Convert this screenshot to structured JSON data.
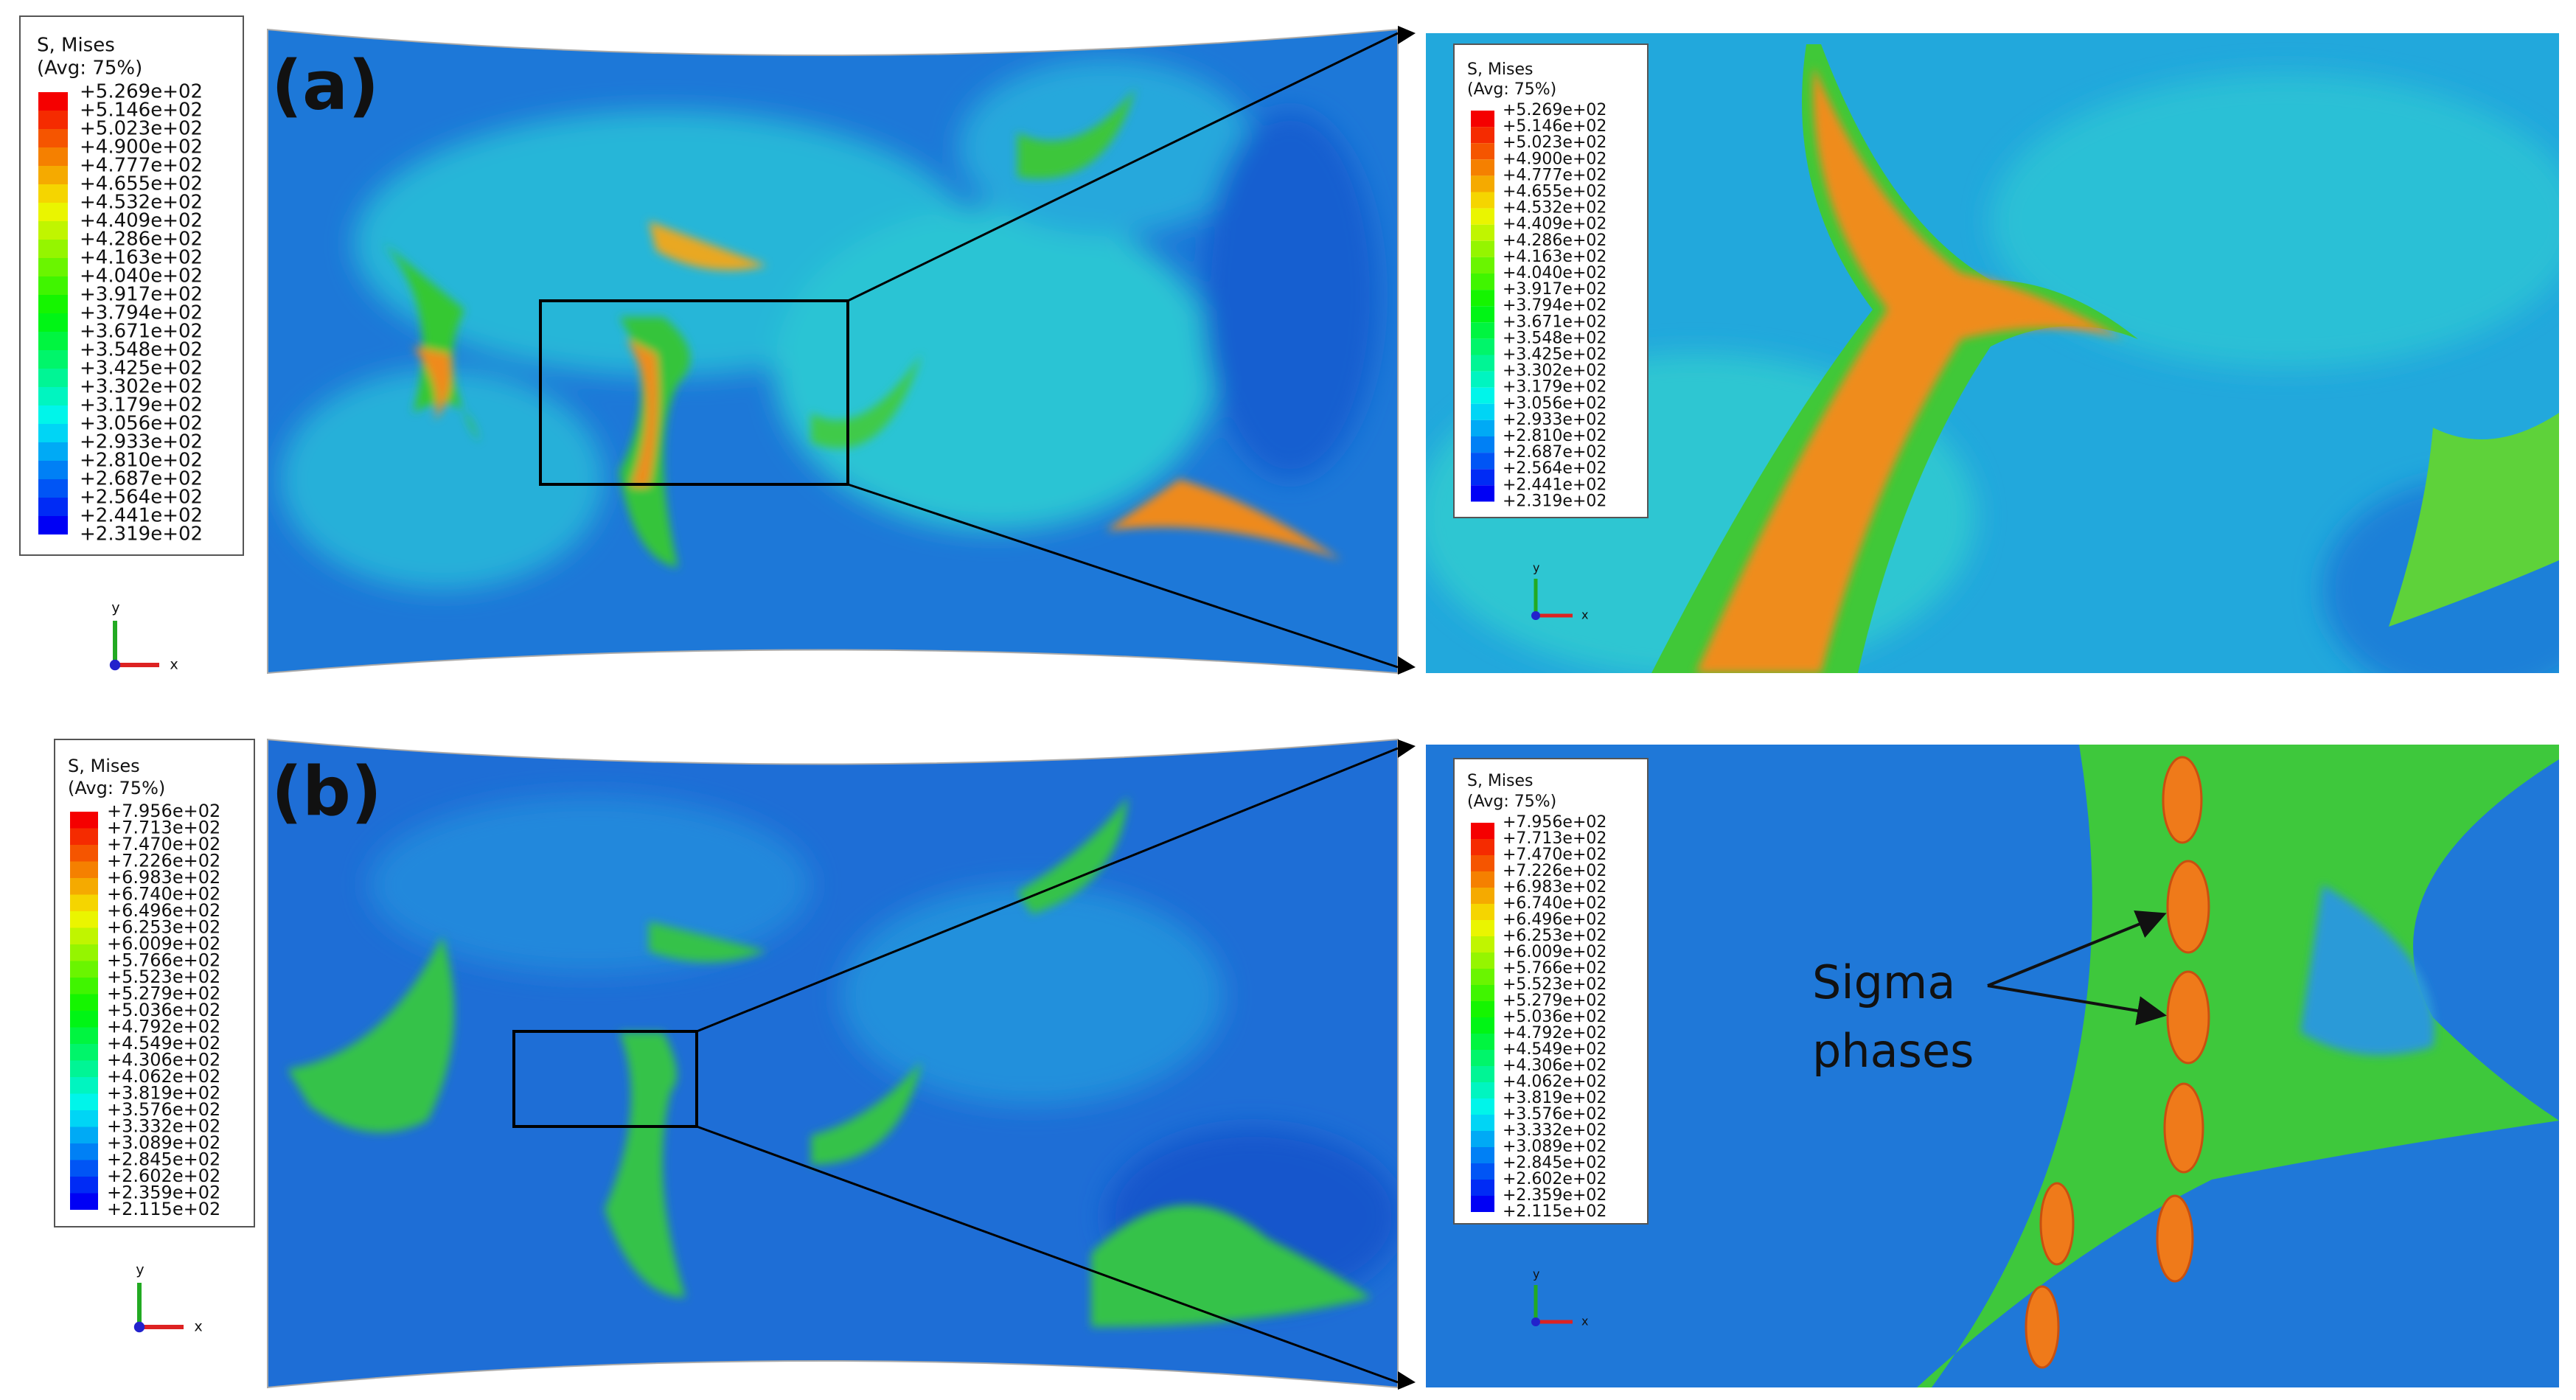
{
  "panels": [
    {
      "label": "(a)",
      "legend": {
        "title": "S, Mises",
        "subtitle": "(Avg: 75%)",
        "values": [
          "+5.269e+02",
          "+5.146e+02",
          "+5.023e+02",
          "+4.900e+02",
          "+4.777e+02",
          "+4.655e+02",
          "+4.532e+02",
          "+4.409e+02",
          "+4.286e+02",
          "+4.163e+02",
          "+4.040e+02",
          "+3.917e+02",
          "+3.794e+02",
          "+3.671e+02",
          "+3.548e+02",
          "+3.425e+02",
          "+3.302e+02",
          "+3.179e+02",
          "+3.056e+02",
          "+2.933e+02",
          "+2.810e+02",
          "+2.687e+02",
          "+2.564e+02",
          "+2.441e+02",
          "+2.319e+02"
        ]
      },
      "axes": {
        "x": "x",
        "y": "y"
      }
    },
    {
      "label": "(b)",
      "legend": {
        "title": "S, Mises",
        "subtitle": "(Avg: 75%)",
        "values": [
          "+7.956e+02",
          "+7.713e+02",
          "+7.470e+02",
          "+7.226e+02",
          "+6.983e+02",
          "+6.740e+02",
          "+6.496e+02",
          "+6.253e+02",
          "+6.009e+02",
          "+5.766e+02",
          "+5.523e+02",
          "+5.279e+02",
          "+5.036e+02",
          "+4.792e+02",
          "+4.549e+02",
          "+4.306e+02",
          "+4.062e+02",
          "+3.819e+02",
          "+3.576e+02",
          "+3.332e+02",
          "+3.089e+02",
          "+2.845e+02",
          "+2.602e+02",
          "+2.359e+02",
          "+2.115e+02"
        ]
      },
      "axes": {
        "x": "x",
        "y": "y"
      },
      "annotation": {
        "line1": "Sigma",
        "line2": "phases"
      }
    }
  ]
}
